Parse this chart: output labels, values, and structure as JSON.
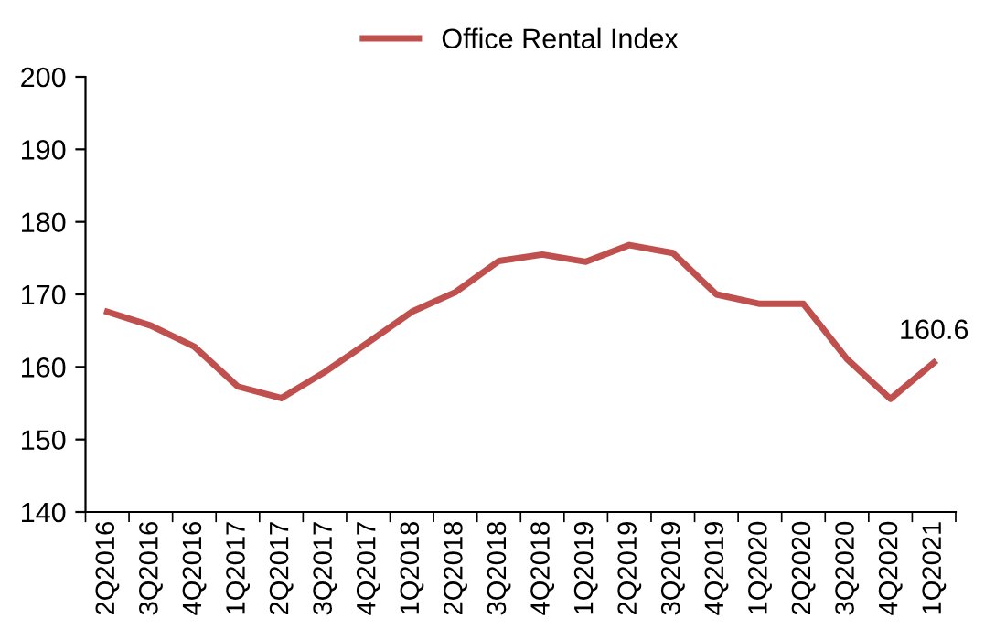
{
  "chart_data": {
    "type": "line",
    "categories": [
      "2Q2016",
      "3Q2016",
      "4Q2016",
      "1Q2017",
      "2Q2017",
      "3Q2017",
      "4Q2017",
      "1Q2018",
      "2Q2018",
      "3Q2018",
      "4Q2018",
      "1Q2019",
      "2Q2019",
      "3Q2019",
      "4Q2019",
      "1Q2020",
      "2Q2020",
      "3Q2020",
      "4Q2020",
      "1Q2021"
    ],
    "series": [
      {
        "name": "Office Rental Index",
        "color": "#c0504d",
        "values": [
          167.6,
          165.7,
          162.8,
          157.3,
          155.7,
          159.3,
          163.4,
          167.6,
          170.3,
          174.6,
          175.5,
          174.5,
          176.8,
          175.7,
          170.0,
          168.7,
          168.7,
          161.1,
          155.6,
          160.6
        ],
        "value_labels": [
          null,
          null,
          null,
          null,
          null,
          null,
          null,
          null,
          null,
          null,
          null,
          null,
          null,
          null,
          null,
          null,
          null,
          null,
          null,
          "160.6"
        ]
      }
    ],
    "ylim": [
      140,
      200
    ],
    "yticks": [
      140,
      150,
      160,
      170,
      180,
      190,
      200
    ],
    "grid": false,
    "legend": "top",
    "marker": "none",
    "line_style": "solid"
  }
}
